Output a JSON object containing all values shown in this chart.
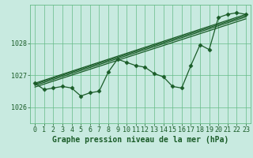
{
  "title": "Graphe pression niveau de la mer (hPa)",
  "bg_color": "#c8eae0",
  "grid_color": "#66bb88",
  "line_color": "#1a5c28",
  "xlim": [
    -0.5,
    23.5
  ],
  "ylim": [
    1025.5,
    1029.2
  ],
  "yticks": [
    1026,
    1027,
    1028
  ],
  "xticks": [
    0,
    1,
    2,
    3,
    4,
    5,
    6,
    7,
    8,
    9,
    10,
    11,
    12,
    13,
    14,
    15,
    16,
    17,
    18,
    19,
    20,
    21,
    22,
    23
  ],
  "series1_x": [
    0,
    1,
    2,
    3,
    4,
    5,
    6,
    7,
    8,
    9,
    10,
    11,
    12,
    13,
    14,
    15,
    16,
    17,
    18,
    19,
    20,
    21,
    22,
    23
  ],
  "series1_y": [
    1026.75,
    1026.55,
    1026.6,
    1026.65,
    1026.6,
    1026.35,
    1026.45,
    1026.5,
    1027.1,
    1027.5,
    1027.4,
    1027.3,
    1027.25,
    1027.05,
    1026.95,
    1026.65,
    1026.6,
    1027.3,
    1027.95,
    1027.8,
    1028.8,
    1028.9,
    1028.95,
    1028.9
  ],
  "trend1_x": [
    0,
    23
  ],
  "trend1_y": [
    1026.75,
    1028.9
  ],
  "trend2_x": [
    0,
    23
  ],
  "trend2_y": [
    1026.72,
    1028.86
  ],
  "trend3_x": [
    0,
    23
  ],
  "trend3_y": [
    1026.68,
    1028.82
  ],
  "trend4_x": [
    0,
    23
  ],
  "trend4_y": [
    1026.63,
    1028.76
  ],
  "marker": "D",
  "marker_size": 2.5,
  "tick_fontsize": 6,
  "label_fontsize": 7,
  "lw": 0.9
}
